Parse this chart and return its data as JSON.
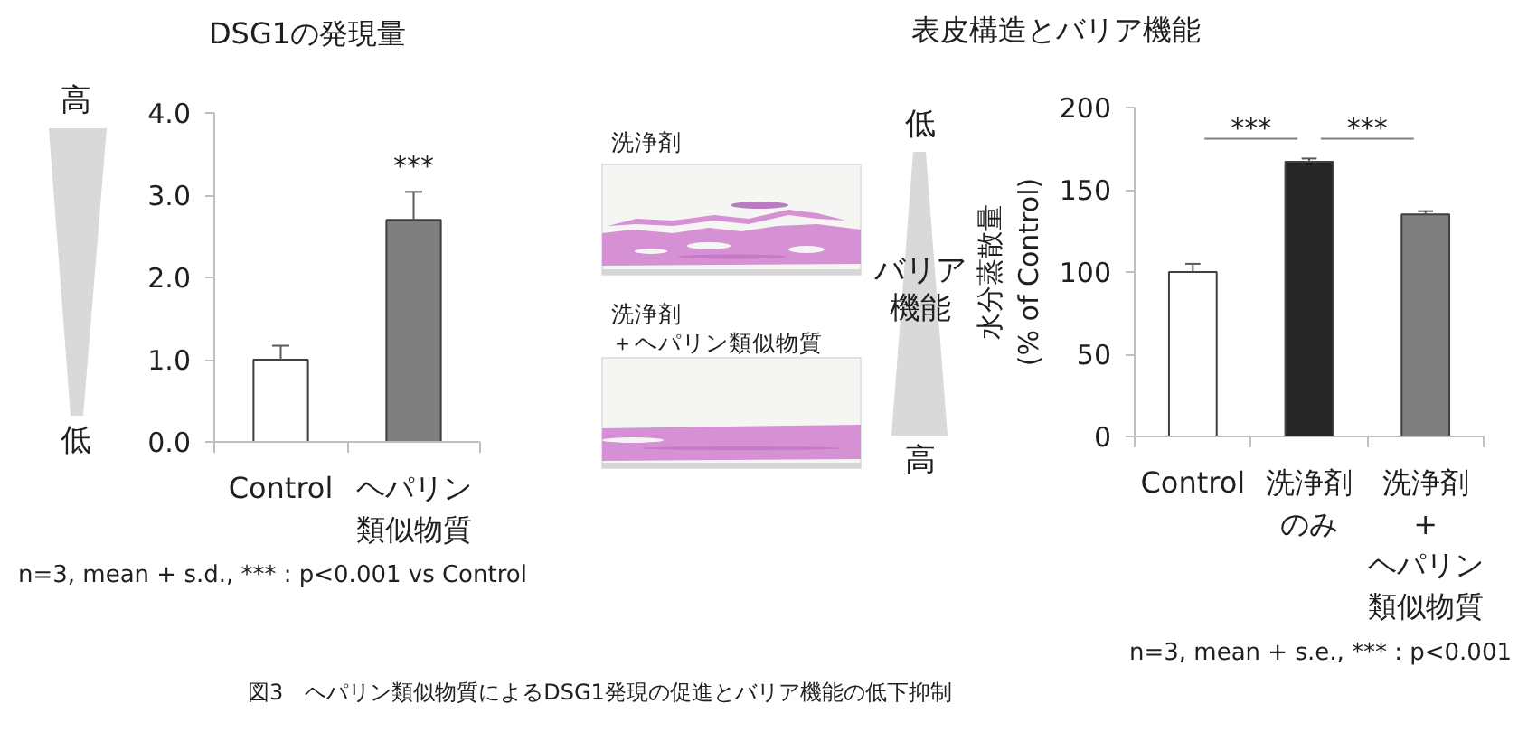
{
  "chart_data": [
    {
      "type": "bar",
      "title": "DSG1の発現量",
      "categories": [
        "Control",
        "ヘパリン類似物質"
      ],
      "values": [
        1.0,
        2.7
      ],
      "colors": [
        "#ffffff",
        "#7f7f7f"
      ],
      "errors": [
        [
          1.0,
          1.17
        ],
        [
          2.7,
          3.04
        ]
      ],
      "ylim": [
        0,
        4
      ],
      "yticks": [
        {
          "value": 0,
          "label": "0.0"
        },
        {
          "value": 1,
          "label": "1.0"
        },
        {
          "value": 2,
          "label": "2.0"
        },
        {
          "value": 3,
          "label": "3.0"
        },
        {
          "value": 4,
          "label": "4.0"
        }
      ],
      "annotations": [
        "高",
        "低",
        "***",
        "n=3, mean + s.d., *** : p<0.001 vs Control"
      ]
    },
    {
      "type": "bar",
      "title": "表皮構造とバリア機能",
      "ylabel": "水分蒸散量\n(% of Control)",
      "categories": [
        "Control",
        "洗浄剤のみ",
        "洗浄剤+ヘパリン類似物質"
      ],
      "values": [
        100,
        167,
        135
      ],
      "colors": [
        "#ffffff",
        "#262626",
        "#7f7f7f"
      ],
      "errors": [
        [
          100,
          105
        ],
        [
          167,
          169
        ],
        [
          135,
          137
        ]
      ],
      "ylim": [
        0,
        200
      ],
      "yticks": [
        0,
        50,
        100,
        150,
        200
      ],
      "annotations": [
        "洗浄剤",
        "洗浄剤＋ヘパリン類似物質",
        "低",
        "バリア機能",
        "高",
        "***",
        "***",
        "n=3, mean + s.e., *** : p<0.001",
        "図3　ヘパリン類似物質によるDSG1発現の促進とバリア機能の低下抑制"
      ]
    }
  ]
}
